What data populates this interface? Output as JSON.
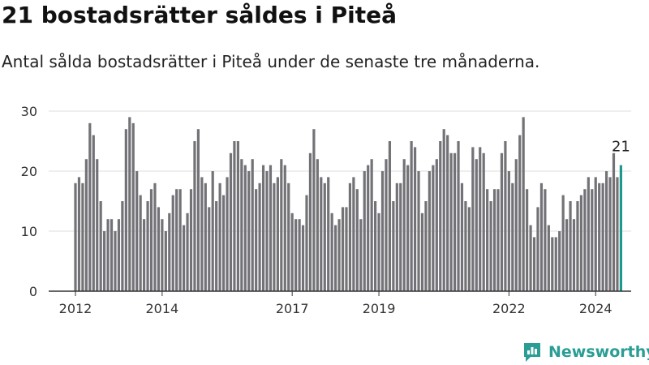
{
  "title": "21 bostadsrätter såldes i Piteå",
  "subtitle": "Antal sålda bostadsrätter i Piteå under de senaste tre månaderna.",
  "brand": {
    "name": "Newsworthy",
    "icon": "newsworthy-logo-icon",
    "color": "#2a9d95"
  },
  "colors": {
    "bar": "#737277",
    "highlight": "#1d9a8d",
    "grid": "#dddddd",
    "axis": "#333333"
  },
  "chart_data": {
    "type": "bar",
    "ylim": [
      0,
      30
    ],
    "yticks": [
      0,
      10,
      20,
      30
    ],
    "xtick_labels": [
      {
        "label": "2012",
        "index": 0
      },
      {
        "label": "2014",
        "index": 24
      },
      {
        "label": "2017",
        "index": 60
      },
      {
        "label": "2019",
        "index": 84
      },
      {
        "label": "2022",
        "index": 120
      },
      {
        "label": "2024",
        "index": 144
      }
    ],
    "highlight_label": "21",
    "values": [
      18,
      19,
      18,
      22,
      28,
      26,
      22,
      15,
      10,
      12,
      12,
      10,
      12,
      15,
      27,
      29,
      28,
      20,
      16,
      12,
      15,
      17,
      18,
      14,
      12,
      10,
      13,
      16,
      17,
      17,
      11,
      13,
      17,
      25,
      27,
      19,
      18,
      14,
      20,
      15,
      18,
      16,
      19,
      23,
      25,
      25,
      22,
      21,
      20,
      22,
      17,
      18,
      21,
      20,
      21,
      18,
      19,
      22,
      21,
      18,
      13,
      12,
      12,
      11,
      16,
      23,
      27,
      22,
      19,
      18,
      19,
      13,
      11,
      12,
      14,
      14,
      18,
      19,
      17,
      12,
      20,
      21,
      22,
      15,
      13,
      20,
      22,
      25,
      15,
      18,
      18,
      22,
      21,
      25,
      24,
      20,
      13,
      15,
      20,
      21,
      22,
      25,
      27,
      26,
      23,
      23,
      25,
      18,
      15,
      14,
      24,
      22,
      24,
      23,
      17,
      15,
      17,
      17,
      23,
      25,
      20,
      18,
      22,
      26,
      29,
      17,
      11,
      9,
      14,
      18,
      17,
      11,
      9,
      9,
      10,
      16,
      12,
      15,
      12,
      15,
      16,
      17,
      19,
      17,
      19,
      18,
      18,
      20,
      19,
      23,
      19,
      21
    ]
  }
}
